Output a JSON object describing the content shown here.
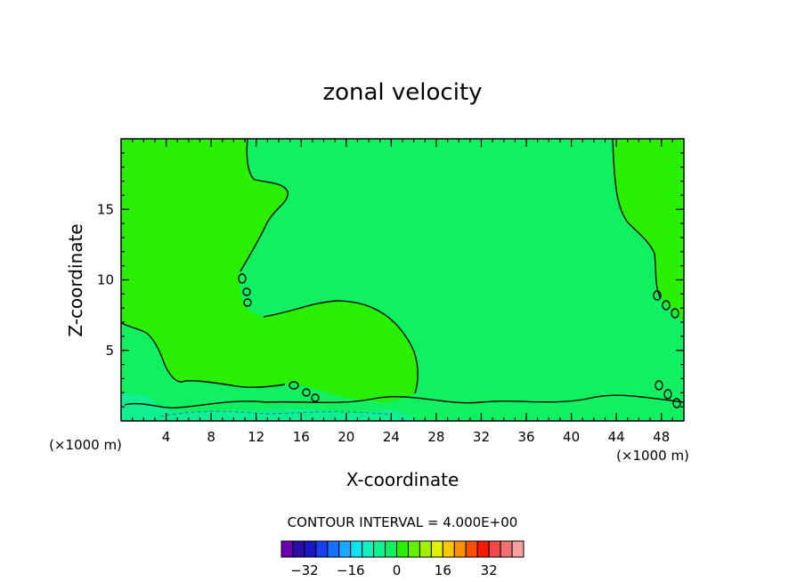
{
  "chart_data": {
    "type": "contour",
    "title": "zonal velocity",
    "xlabel": "X-coordinate",
    "ylabel": "Z-coordinate",
    "x_unit": "(×1000 m)",
    "xlim": [
      0,
      50
    ],
    "ylim": [
      0,
      20
    ],
    "x_ticks": [
      4,
      8,
      12,
      16,
      20,
      24,
      28,
      32,
      36,
      40,
      44,
      48
    ],
    "y_ticks": [
      5,
      10,
      15
    ],
    "contour_interval_text": "CONTOUR INTERVAL = 4.000E+00",
    "colorbar": {
      "colors": [
        "#6a00b0",
        "#2a10a8",
        "#1818c8",
        "#1840f0",
        "#1870ff",
        "#18a8ff",
        "#10e0f0",
        "#10f0c0",
        "#10f090",
        "#10f060",
        "#28f000",
        "#60f000",
        "#a0f000",
        "#e0f000",
        "#f8c800",
        "#f89000",
        "#f85000",
        "#f81800",
        "#f04848",
        "#f07070",
        "#f8a0a0"
      ],
      "tick_labels": [
        "−32",
        "−16",
        "0",
        "16",
        "32"
      ],
      "tick_values": [
        -32,
        -16,
        0,
        16,
        32
      ]
    },
    "fill_colors": {
      "background": "#10f060",
      "band_0_4": "#28f000",
      "band_neg4_0": "#10f090"
    }
  }
}
